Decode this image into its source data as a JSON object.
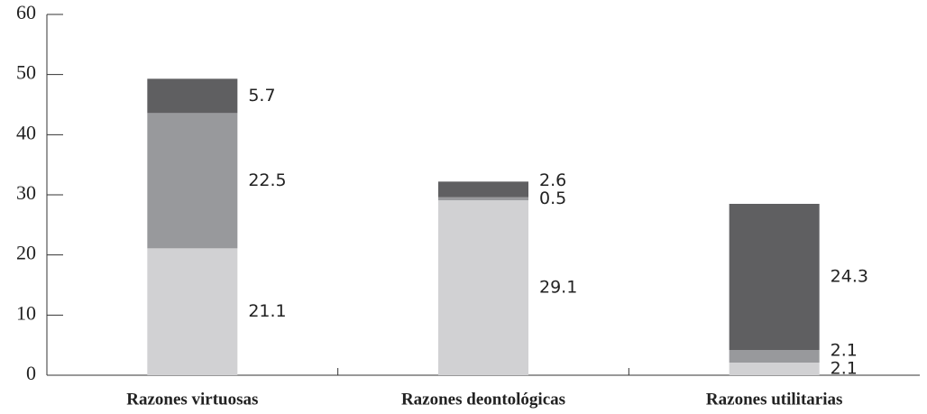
{
  "chart_data": {
    "type": "stacked_bar",
    "categories": [
      "Razones virtuosas",
      "Razones deontológicas",
      "Razones utilitarias"
    ],
    "series": [
      {
        "color": "#d1d1d3",
        "values": [
          21.1,
          29.1,
          2.1
        ]
      },
      {
        "color": "#98999c",
        "values": [
          22.5,
          0.5,
          2.1
        ]
      },
      {
        "color": "#5f5f61",
        "values": [
          5.7,
          2.6,
          24.3
        ]
      }
    ],
    "ylim": [
      0,
      60
    ],
    "yticks": [
      0,
      10,
      20,
      30,
      40,
      50,
      60
    ]
  }
}
